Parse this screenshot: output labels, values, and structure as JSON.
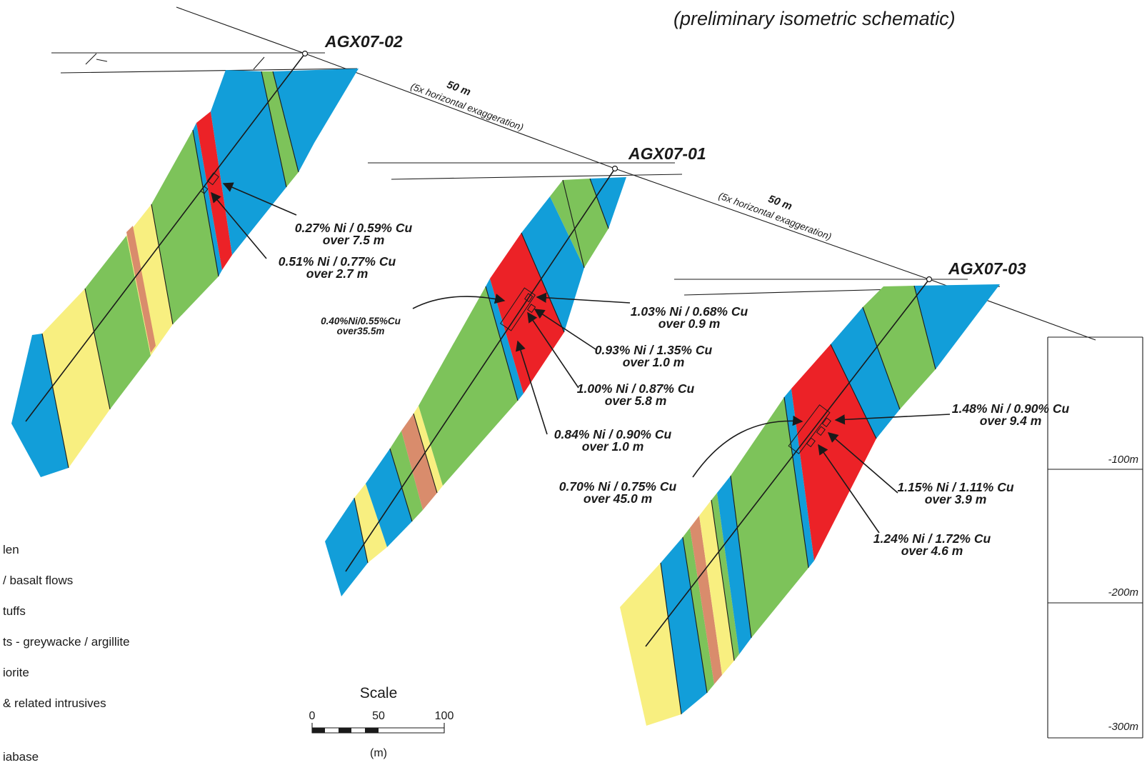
{
  "title": "(preliminary isometric schematic)",
  "holes": [
    {
      "name": "AGX07-02"
    },
    {
      "name": "AGX07-01"
    },
    {
      "name": "AGX07-03"
    }
  ],
  "spacing": [
    {
      "distance": "50 m",
      "note": "(5x horizontal exaggeration)"
    },
    {
      "distance": "50 m",
      "note": "(5x horizontal exaggeration)"
    }
  ],
  "assays": [
    {
      "grade": "0.27% Ni / 0.59% Cu",
      "length": "over 7.5 m"
    },
    {
      "grade": "0.51% Ni / 0.77% Cu",
      "length": "over 2.7 m"
    },
    {
      "grade": "0.40%Ni/0.55%Cu",
      "length": "over35.5m"
    },
    {
      "grade": "1.03% Ni / 0.68% Cu",
      "length": "over 0.9 m"
    },
    {
      "grade": "0.93% Ni / 1.35% Cu",
      "length": "over 1.0 m"
    },
    {
      "grade": "1.00% Ni / 0.87% Cu",
      "length": "over 5.8 m"
    },
    {
      "grade": "0.84% Ni / 0.90% Cu",
      "length": "over 1.0 m"
    },
    {
      "grade": "1.48% Ni / 0.90% Cu",
      "length": "over 9.4 m"
    },
    {
      "grade": "0.70% Ni / 0.75% Cu",
      "length": "over 45.0 m"
    },
    {
      "grade": "1.15% Ni / 1.11% Cu",
      "length": "over 3.9 m"
    },
    {
      "grade": "1.24% Ni / 1.72% Cu",
      "length": "over 4.6 m"
    }
  ],
  "legend": [
    {
      "text": "len",
      "color": "#129ed9"
    },
    {
      "text": "/ basalt  flows",
      "color": "#7dc35a"
    },
    {
      "text": "tuffs",
      "color": "#7dc35a"
    },
    {
      "text": "ts  -  greywacke / argillite",
      "color": "#f8ef80"
    },
    {
      "text": "iorite",
      "color": "#d98c6c"
    },
    {
      "text": "&  related  intrusives",
      "color": "#ec2227"
    },
    {
      "text": "iabase",
      "color": "#129ed9"
    }
  ],
  "scale_bar": {
    "title": "Scale",
    "ticks": [
      "0",
      "50",
      "100"
    ],
    "unit": "(m)"
  },
  "depth_scale": [
    "-100m",
    "-200m",
    "-300m"
  ],
  "colors": {
    "blue_unit": "#129ed9",
    "green_unit": "#7dc35a",
    "red_unit": "#ec2227",
    "yellow_unit": "#f8ef80",
    "brown_unit": "#d98c6c"
  }
}
